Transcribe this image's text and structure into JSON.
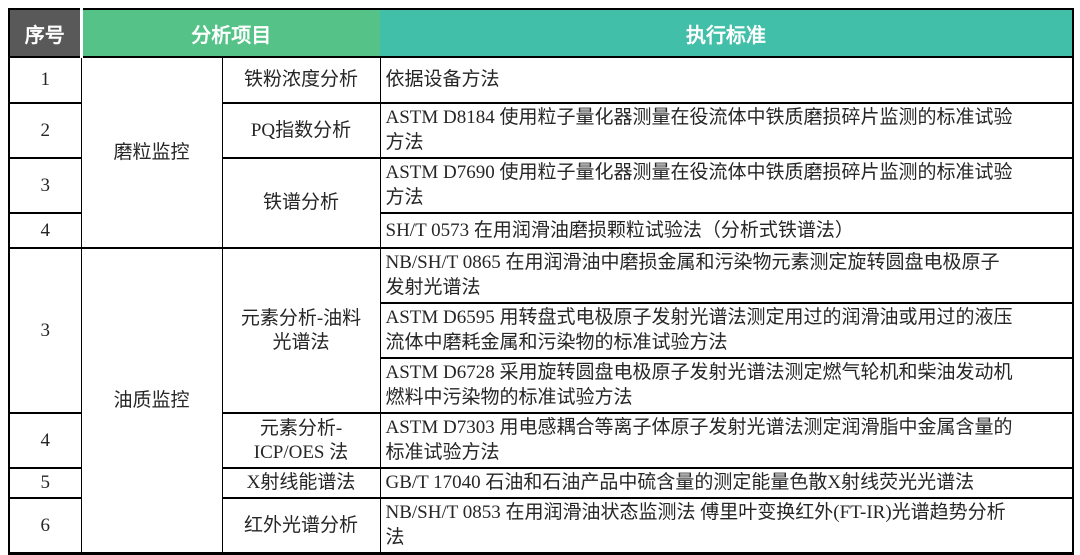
{
  "header": {
    "serial": "序号",
    "analysis_item": "分析项目",
    "standard": "执行标准"
  },
  "colors": {
    "serial_header_bg": "#595959",
    "analysis_item_header_bg": "#55c387",
    "standard_header_bg": "#41bfa8",
    "header_text": "#ffffff",
    "body_text": "#262626",
    "border": "#000000"
  },
  "rows": [
    {
      "serial": "1",
      "group": "磨粒监控",
      "method": "铁粉浓度分析",
      "standard": "依据设备方法"
    },
    {
      "serial": "2",
      "method": "PQ指数分析",
      "standard": "ASTM D8184 使用粒子量化器测量在役流体中铁质磨损碎片监测的标准试验\n方法"
    },
    {
      "serial": "3",
      "method": "铁谱分析",
      "standard": "ASTM D7690 使用粒子量化器测量在役流体中铁质磨损碎片监测的标准试验\n方法"
    },
    {
      "serial": "4",
      "standard": "SH/T 0573 在用润滑油磨损颗粒试验法（分析式铁谱法）"
    },
    {
      "serial": "3",
      "group": "油质监控",
      "method": "元素分析-油料\n光谱法",
      "standard": "NB/SH/T 0865 在用润滑油中磨损金属和污染物元素测定旋转圆盘电极原子\n发射光谱法"
    },
    {
      "standard": "ASTM D6595 用转盘式电极原子发射光谱法测定用过的润滑油或用过的液压\n流体中磨耗金属和污染物的标准试验方法"
    },
    {
      "standard": "ASTM D6728 采用旋转圆盘电极原子发射光谱法测定燃气轮机和柴油发动机\n燃料中污染物的标准试验方法"
    },
    {
      "serial": "4",
      "method": "元素分析-\nICP/OES 法",
      "standard": "ASTM D7303 用电感耦合等离子体原子发射光谱法测定润滑脂中金属含量的\n标准试验方法"
    },
    {
      "serial": "5",
      "method": "X射线能谱法",
      "standard": "GB/T 17040 石油和石油产品中硫含量的测定能量色散X射线荧光光谱法"
    },
    {
      "serial": "6",
      "method": "红外光谱分析",
      "standard": "NB/SH/T 0853 在用润滑油状态监测法 傅里叶变换红外(FT-IR)光谱趋势分析\n法"
    }
  ]
}
